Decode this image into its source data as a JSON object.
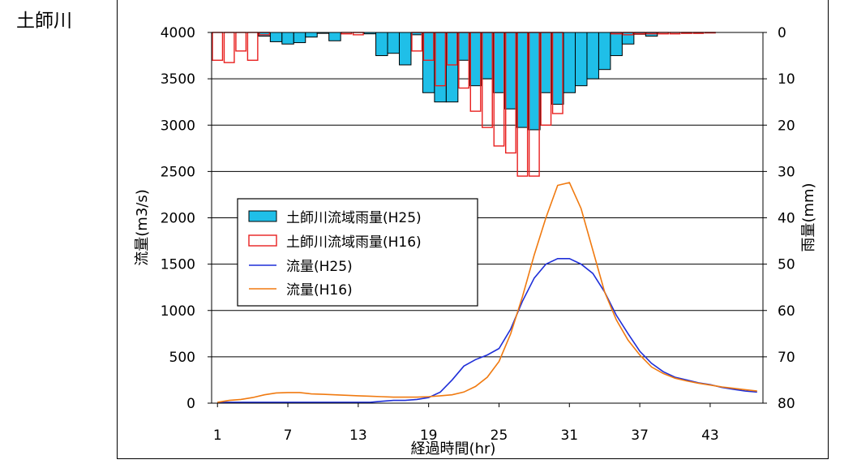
{
  "page": {
    "title": "土師川"
  },
  "chart_data": {
    "type": "bar+line",
    "x": [
      1,
      2,
      3,
      4,
      5,
      6,
      7,
      8,
      9,
      10,
      11,
      12,
      13,
      14,
      15,
      16,
      17,
      18,
      19,
      20,
      21,
      22,
      23,
      24,
      25,
      26,
      27,
      28,
      29,
      30,
      31,
      32,
      33,
      34,
      35,
      36,
      37,
      38,
      39,
      40,
      41,
      42,
      43,
      44,
      45,
      46,
      47
    ],
    "xticks": [
      1,
      7,
      13,
      19,
      25,
      31,
      37,
      43
    ],
    "xlabel": "経過時間(hr)",
    "ylabel_left": "流量(m3/s)",
    "ylabel_right": "雨量(mm)",
    "ylim_left": [
      0,
      4000
    ],
    "yticks_left": [
      0,
      500,
      1000,
      1500,
      2000,
      2500,
      3000,
      3500,
      4000
    ],
    "ylim_right": [
      80,
      0
    ],
    "yticks_right": [
      0,
      10,
      20,
      30,
      40,
      50,
      60,
      70,
      80
    ],
    "grid": "horizontal",
    "legend_position": "left-middle",
    "series": [
      {
        "name": "土師川流域雨量(H25)",
        "kind": "bar",
        "axis": "right",
        "color": "#1fbfe8",
        "values": [
          0,
          0,
          0,
          0,
          0.8,
          2.0,
          2.5,
          2.2,
          1.0,
          0.2,
          1.8,
          0,
          0,
          0.3,
          5.0,
          4.5,
          7.0,
          0.5,
          13.0,
          15.0,
          15.0,
          6.0,
          11.5,
          10.0,
          13.0,
          16.5,
          20.5,
          21.0,
          13.0,
          15.5,
          13.0,
          11.5,
          10.0,
          8.0,
          5.0,
          2.5,
          0.4,
          0.8,
          0,
          0,
          0,
          0,
          0,
          0,
          0,
          0,
          0
        ]
      },
      {
        "name": "土師川流域雨量(H16)",
        "kind": "bar",
        "axis": "right",
        "color": "#e8201f",
        "values": [
          6.0,
          6.5,
          4.0,
          6.0,
          0.5,
          0,
          0,
          0,
          0,
          0,
          0,
          0.3,
          0.5,
          0,
          0,
          0,
          0,
          4.0,
          6.0,
          11.5,
          7.0,
          12.0,
          17.0,
          20.5,
          24.5,
          26.0,
          31.0,
          31.0,
          20.0,
          17.5,
          0,
          0,
          0,
          0,
          0.3,
          0.5,
          0.3,
          0.3,
          0.3,
          0.3,
          0.2,
          0.2,
          0.1,
          0,
          0,
          0,
          0
        ]
      },
      {
        "name": "流量(H25)",
        "kind": "line",
        "axis": "left",
        "color": "#1f2fd8",
        "values": [
          10,
          10,
          10,
          10,
          10,
          10,
          10,
          10,
          10,
          10,
          10,
          10,
          10,
          10,
          20,
          30,
          30,
          40,
          60,
          120,
          250,
          400,
          470,
          520,
          590,
          800,
          1100,
          1350,
          1500,
          1560,
          1560,
          1500,
          1400,
          1200,
          950,
          750,
          560,
          430,
          340,
          280,
          250,
          220,
          200,
          170,
          150,
          130,
          120
        ]
      },
      {
        "name": "流量(H16)",
        "kind": "line",
        "axis": "left",
        "color": "#f07a10",
        "values": [
          10,
          30,
          40,
          60,
          90,
          110,
          115,
          115,
          100,
          95,
          90,
          85,
          80,
          75,
          70,
          65,
          65,
          65,
          70,
          80,
          90,
          120,
          180,
          280,
          450,
          750,
          1150,
          1600,
          2000,
          2350,
          2380,
          2100,
          1650,
          1200,
          900,
          680,
          520,
          390,
          320,
          270,
          240,
          215,
          195,
          175,
          160,
          145,
          130
        ]
      }
    ]
  }
}
